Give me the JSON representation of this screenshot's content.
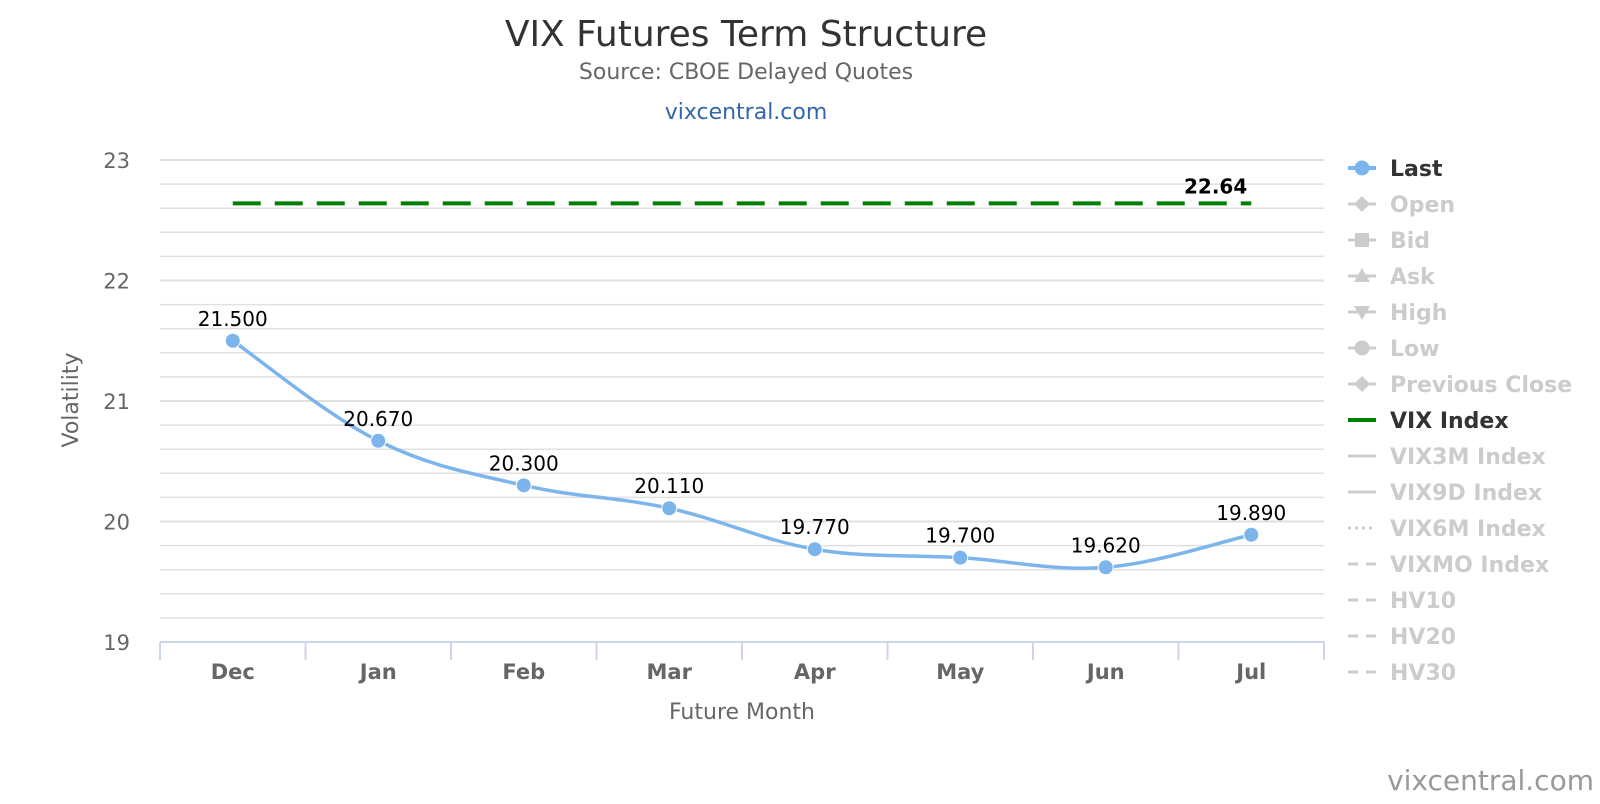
{
  "chart_data": {
    "type": "line",
    "title": "VIX Futures Term Structure",
    "subtitle": "Source: CBOE Delayed Quotes",
    "site_link": "vixcentral.com",
    "watermark": "vixcentral.com",
    "xlabel": "Future Month",
    "ylabel": "Volatility",
    "categories": [
      "Dec",
      "Jan",
      "Feb",
      "Mar",
      "Apr",
      "May",
      "Jun",
      "Jul"
    ],
    "ylim": [
      19,
      23
    ],
    "yticks": [
      19,
      20,
      21,
      22,
      23
    ],
    "grid": true,
    "legend_position": "right",
    "series": [
      {
        "name": "Last",
        "color": "#7cb5ec",
        "values": [
          21.5,
          20.67,
          20.3,
          20.11,
          19.77,
          19.7,
          19.62,
          19.89
        ],
        "labels": [
          "21.500",
          "20.670",
          "20.300",
          "20.110",
          "19.770",
          "19.700",
          "19.620",
          "19.890"
        ]
      },
      {
        "name": "VIX Index",
        "color": "#008000",
        "style": "dashed",
        "value": 22.64,
        "label": "22.64"
      }
    ],
    "legend": [
      {
        "name": "Last",
        "active": true,
        "symbol": "line-circle",
        "color": "#7cb5ec"
      },
      {
        "name": "Open",
        "active": false,
        "symbol": "line-diamond"
      },
      {
        "name": "Bid",
        "active": false,
        "symbol": "line-square"
      },
      {
        "name": "Ask",
        "active": false,
        "symbol": "line-triangle"
      },
      {
        "name": "High",
        "active": false,
        "symbol": "line-triangle-down"
      },
      {
        "name": "Low",
        "active": false,
        "symbol": "line-circle"
      },
      {
        "name": "Previous Close",
        "active": false,
        "symbol": "line-diamond"
      },
      {
        "name": "VIX Index",
        "active": true,
        "symbol": "line",
        "color": "#008000"
      },
      {
        "name": "VIX3M Index",
        "active": false,
        "symbol": "line"
      },
      {
        "name": "VIX9D Index",
        "active": false,
        "symbol": "line"
      },
      {
        "name": "VIX6M Index",
        "active": false,
        "symbol": "dotted"
      },
      {
        "name": "VIXMO Index",
        "active": false,
        "symbol": "dashed"
      },
      {
        "name": "HV10",
        "active": false,
        "symbol": "dashed"
      },
      {
        "name": "HV20",
        "active": false,
        "symbol": "dashed"
      },
      {
        "name": "HV30",
        "active": false,
        "symbol": "dashed"
      }
    ]
  }
}
